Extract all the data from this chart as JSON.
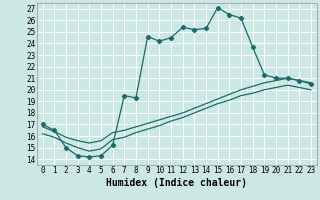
{
  "xlabel": "Humidex (Indice chaleur)",
  "bg_color": "#cce8e5",
  "line_color": "#1a6b6b",
  "grid_color": "#ffffff",
  "xlim": [
    -0.5,
    23.5
  ],
  "ylim": [
    13.5,
    27.5
  ],
  "xticks": [
    0,
    1,
    2,
    3,
    4,
    5,
    6,
    7,
    8,
    9,
    10,
    11,
    12,
    13,
    14,
    15,
    16,
    17,
    18,
    19,
    20,
    21,
    22,
    23
  ],
  "yticks": [
    14,
    15,
    16,
    17,
    18,
    19,
    20,
    21,
    22,
    23,
    24,
    25,
    26,
    27
  ],
  "line1_x": [
    0,
    1,
    2,
    3,
    4,
    5,
    6,
    7,
    8,
    9,
    10,
    11,
    12,
    13,
    14,
    15,
    16,
    17,
    18,
    19,
    20,
    21,
    22,
    23
  ],
  "line1_y": [
    17.0,
    16.5,
    15.0,
    14.3,
    14.2,
    14.3,
    15.2,
    19.5,
    19.3,
    24.6,
    24.2,
    24.5,
    25.4,
    25.2,
    25.3,
    27.1,
    26.5,
    26.2,
    23.7,
    21.3,
    21.0,
    21.0,
    20.8,
    20.5
  ],
  "line2_x": [
    0,
    1,
    2,
    3,
    4,
    5,
    6,
    7,
    8,
    9,
    10,
    11,
    12,
    13,
    14,
    15,
    16,
    17,
    18,
    19,
    20,
    21,
    22,
    23
  ],
  "line2_y": [
    16.8,
    16.4,
    15.9,
    15.6,
    15.4,
    15.6,
    16.3,
    16.5,
    16.8,
    17.1,
    17.4,
    17.7,
    18.0,
    18.4,
    18.8,
    19.2,
    19.6,
    20.0,
    20.3,
    20.6,
    20.8,
    21.0,
    20.8,
    20.6
  ],
  "line3_x": [
    0,
    1,
    2,
    3,
    4,
    5,
    6,
    7,
    8,
    9,
    10,
    11,
    12,
    13,
    14,
    15,
    16,
    17,
    18,
    19,
    20,
    21,
    22,
    23
  ],
  "line3_y": [
    16.2,
    15.9,
    15.4,
    15.0,
    14.7,
    14.9,
    15.7,
    15.9,
    16.3,
    16.6,
    16.9,
    17.3,
    17.6,
    18.0,
    18.4,
    18.8,
    19.1,
    19.5,
    19.7,
    20.0,
    20.2,
    20.4,
    20.2,
    20.0
  ],
  "tick_fontsize": 5.5,
  "xlabel_fontsize": 7.0
}
